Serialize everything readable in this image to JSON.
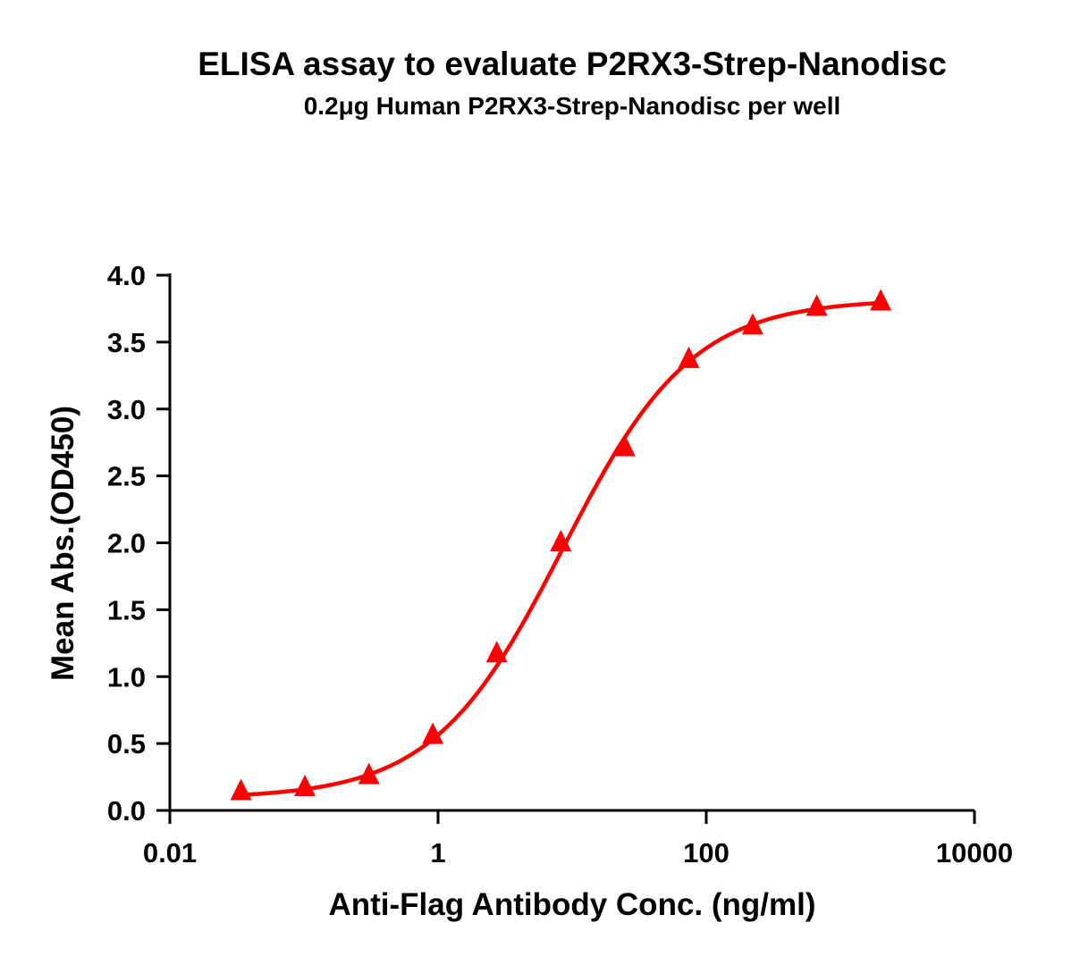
{
  "chart_data": {
    "type": "line",
    "title": "ELISA assay to evaluate P2RX3-Strep-Nanodisc",
    "subtitle": "0.2μg Human P2RX3-Strep-Nanodisc per well",
    "xlabel": "Anti-Flag Antibody Conc. (ng/ml)",
    "ylabel": "Mean Abs.(OD450)",
    "x_scale": "log",
    "xlim": [
      0.01,
      10000
    ],
    "ylim": [
      0,
      4.0
    ],
    "x_ticks": [
      "0.01",
      "1",
      "100",
      "10000"
    ],
    "y_ticks": [
      "0.0",
      "0.5",
      "1.0",
      "1.5",
      "2.0",
      "2.5",
      "3.0",
      "3.5",
      "4.0"
    ],
    "grid": false,
    "legend": "none",
    "series_color": "#ff0000",
    "marker": "triangle",
    "fit": "sigmoidal curve",
    "series": [
      {
        "x": [
          0.0339,
          0.1016,
          0.305,
          0.914,
          2.74,
          8.23,
          24.7,
          74.1,
          222,
          667,
          2000
        ],
        "y": [
          0.13,
          0.16,
          0.25,
          0.55,
          1.16,
          1.99,
          2.7,
          3.36,
          3.61,
          3.75,
          3.79
        ]
      }
    ]
  }
}
